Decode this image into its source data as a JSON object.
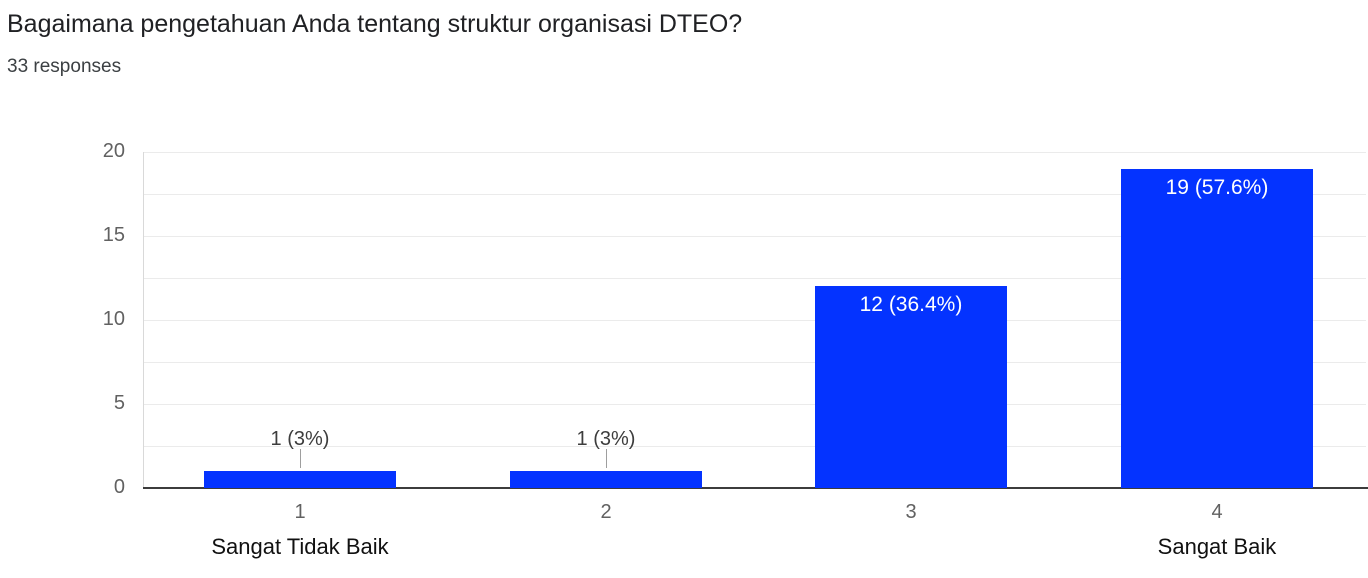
{
  "header": {
    "title": "Bagaimana pengetahuan Anda tentang struktur organisasi DTEO?",
    "responses_count": "33 responses"
  },
  "chart_data": {
    "type": "bar",
    "title": "Bagaimana pengetahuan Anda tentang struktur organisasi DTEO?",
    "subtitle": "33 responses",
    "categories": [
      "1",
      "2",
      "3",
      "4"
    ],
    "category_sublabels": [
      "Sangat Tidak Baik",
      "",
      "",
      "Sangat Baik"
    ],
    "values": [
      1,
      1,
      12,
      19
    ],
    "data_labels": [
      "1 (3%)",
      "1 (3%)",
      "12 (36.4%)",
      "19 (57.6%)"
    ],
    "data_label_placement": [
      "outside",
      "outside",
      "inside",
      "inside"
    ],
    "ylim": [
      0,
      20
    ],
    "yticks": [
      0,
      5,
      10,
      15,
      20
    ],
    "grid": true,
    "grid_step": 2.5,
    "legend": "none",
    "xlabel": "",
    "ylabel": ""
  },
  "colors": {
    "bar": "#0433ff",
    "title_text": "#202124",
    "subtitle_text": "#3c4043",
    "axis_tick_text": "#616161",
    "category_text": "#111111",
    "gridline": "#ebebeb",
    "baseline": "#3c3c3c",
    "connector": "#9e9e9e",
    "inside_label_text": "#ffffff",
    "outside_label_text": "#3d3d3d"
  }
}
